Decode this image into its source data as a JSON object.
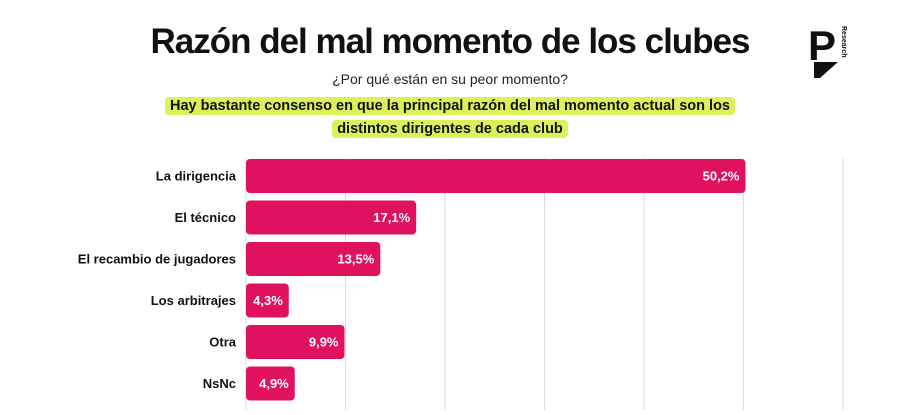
{
  "header": {
    "title": "Razón del mal momento de los clubes",
    "subtitle": "¿Por qué están en su peor momento?",
    "highlight": "Hay bastante consenso en que la principal razón del mal momento actual son los distintos dirigentes de cada club"
  },
  "logo": {
    "letter": "P",
    "text": "Research"
  },
  "colors": {
    "bar": "#e0115f",
    "highlight": "#dcf05a",
    "grid": "#d9d9d9"
  },
  "chart_data": {
    "type": "bar",
    "orientation": "horizontal",
    "categories": [
      "La dirigencia",
      "El técnico",
      "El recambio de jugadores",
      "Los arbitrajes",
      "Otra",
      "NsNc"
    ],
    "values": [
      50.2,
      17.1,
      13.5,
      4.3,
      9.9,
      4.9
    ],
    "value_labels": [
      "50,2%",
      "17,1%",
      "13,5%",
      "4,3%",
      "9,9%",
      "4,9%"
    ],
    "xlim": [
      0,
      60
    ],
    "grid": true
  }
}
